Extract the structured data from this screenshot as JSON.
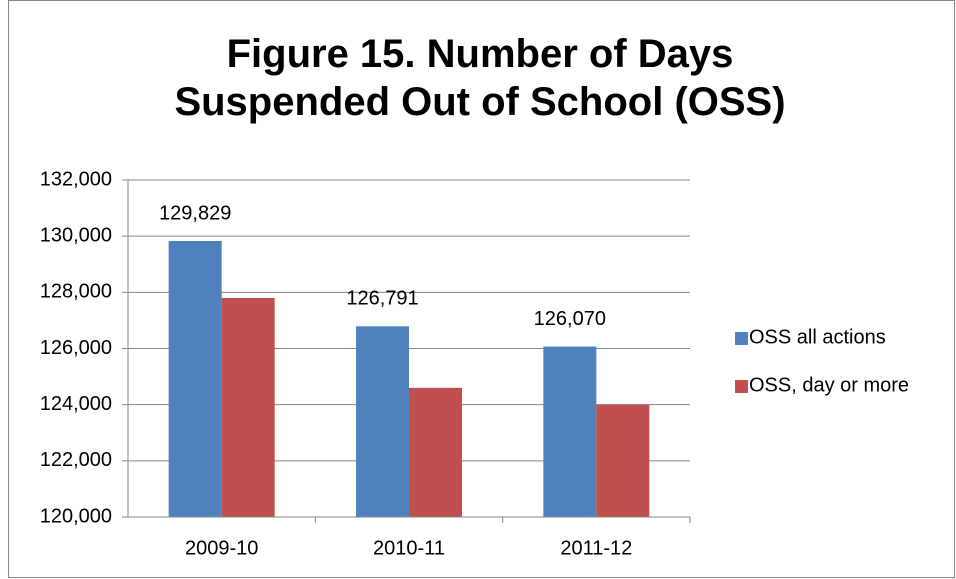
{
  "chart_data": {
    "type": "bar",
    "title": "Figure 15. Number of Days Suspended Out of School (OSS)",
    "categories": [
      "2009-10",
      "2010-11",
      "2011-12"
    ],
    "series": [
      {
        "name": "OSS all actions",
        "color": "#4f81bd",
        "values": [
          129829,
          126791,
          126070
        ],
        "value_labels": [
          "129,829",
          "126,791",
          "126,070"
        ]
      },
      {
        "name": "OSS, day or more",
        "color": "#c0504d",
        "values": [
          127800,
          124600,
          124000
        ]
      }
    ],
    "ylim": [
      120000,
      132000
    ],
    "yticks": [
      {
        "value": 120000,
        "label": "120,000"
      },
      {
        "value": 122000,
        "label": "122,000"
      },
      {
        "value": 124000,
        "label": "124,000"
      },
      {
        "value": 126000,
        "label": "126,000"
      },
      {
        "value": 128000,
        "label": "128,000"
      },
      {
        "value": 130000,
        "label": "130,000"
      },
      {
        "value": 132000,
        "label": "132,000"
      }
    ],
    "grid": true,
    "legend": "right"
  }
}
